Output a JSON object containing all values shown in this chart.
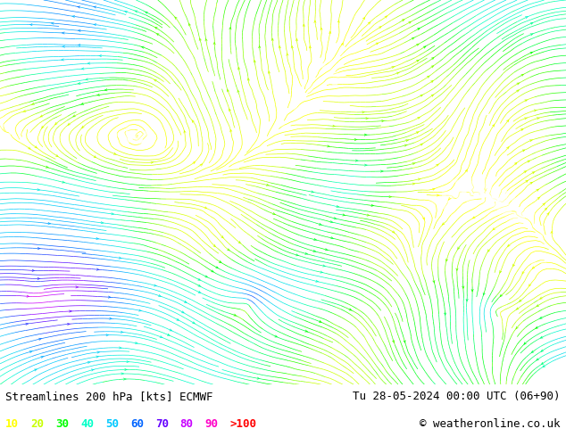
{
  "title_left": "Streamlines 200 hPa [kts] ECMWF",
  "title_right": "Tu 28-05-2024 00:00 UTC (06+90)",
  "copyright": "© weatheronline.co.uk",
  "legend_values": [
    "10",
    "20",
    "30",
    "40",
    "50",
    "60",
    "70",
    "80",
    "90",
    ">100"
  ],
  "legend_colors": [
    "#ffff00",
    "#c8ff00",
    "#00ff00",
    "#00ffc8",
    "#00c8ff",
    "#0064ff",
    "#6400ff",
    "#c800ff",
    "#ff00c8",
    "#ff0000"
  ],
  "bg_color": "#ffffff",
  "text_color": "#000000",
  "fig_width": 6.34,
  "fig_height": 4.9,
  "dpi": 100
}
